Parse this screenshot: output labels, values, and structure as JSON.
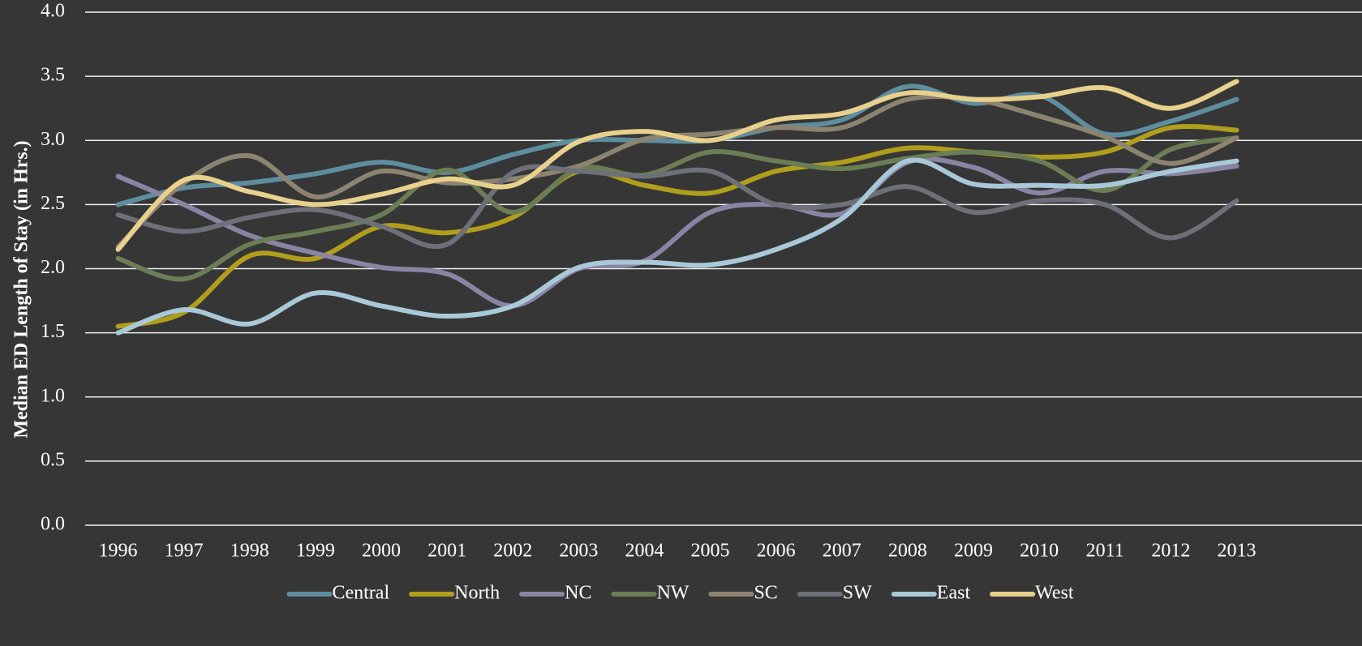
{
  "chart_data": {
    "type": "line",
    "y_label": "Median ED Length of Stay (in Hrs.)",
    "categories": [
      "1996",
      "1997",
      "1998",
      "1999",
      "2000",
      "2001",
      "2002",
      "2003",
      "2004",
      "2005",
      "2006",
      "2007",
      "2008",
      "2009",
      "2010",
      "2011",
      "2012",
      "2013"
    ],
    "ylim": [
      0,
      4
    ],
    "yticks": [
      {
        "value": 0,
        "label": "0.0"
      },
      {
        "value": 0.5,
        "label": "0.5"
      },
      {
        "value": 1,
        "label": "1.0"
      },
      {
        "value": 1.5,
        "label": "1.5"
      },
      {
        "value": 2,
        "label": "2.0"
      },
      {
        "value": 2.5,
        "label": "2.5"
      },
      {
        "value": 3,
        "label": "3.0"
      },
      {
        "value": 3.5,
        "label": "3.5"
      },
      {
        "value": 4,
        "label": "4.0"
      }
    ],
    "grid": true,
    "legend": "bottom",
    "smooth": true,
    "series": [
      {
        "name": "Central",
        "color": "#5e8d9e",
        "values": [
          2.5,
          2.63,
          2.67,
          2.74,
          2.83,
          2.75,
          2.89,
          3.0,
          3.0,
          3.0,
          3.1,
          3.16,
          3.42,
          3.29,
          3.35,
          3.05,
          3.15,
          3.32
        ]
      },
      {
        "name": "North",
        "color": "#b09e1c",
        "values": [
          1.55,
          1.66,
          2.1,
          2.08,
          2.33,
          2.28,
          2.4,
          2.76,
          2.65,
          2.59,
          2.76,
          2.83,
          2.94,
          2.91,
          2.87,
          2.91,
          3.1,
          3.08
        ]
      },
      {
        "name": "NC",
        "color": "#8a84a4",
        "values": [
          2.72,
          2.5,
          2.26,
          2.12,
          2.01,
          1.96,
          1.71,
          2.0,
          2.06,
          2.44,
          2.5,
          2.43,
          2.83,
          2.79,
          2.59,
          2.76,
          2.74,
          2.8
        ]
      },
      {
        "name": "NW",
        "color": "#6b7d55",
        "values": [
          2.08,
          1.92,
          2.19,
          2.29,
          2.42,
          2.77,
          2.44,
          2.78,
          2.73,
          2.91,
          2.84,
          2.78,
          2.86,
          2.91,
          2.84,
          2.61,
          2.93,
          3.02
        ]
      },
      {
        "name": "SC",
        "color": "#8c8370",
        "values": [
          2.17,
          2.67,
          2.88,
          2.56,
          2.76,
          2.67,
          2.7,
          2.8,
          3.01,
          3.05,
          3.1,
          3.1,
          3.32,
          3.32,
          3.19,
          3.03,
          2.82,
          3.02
        ]
      },
      {
        "name": "SW",
        "color": "#6d7079",
        "values": [
          2.42,
          2.29,
          2.4,
          2.46,
          2.33,
          2.19,
          2.75,
          2.76,
          2.72,
          2.76,
          2.5,
          2.5,
          2.64,
          2.44,
          2.53,
          2.5,
          2.24,
          2.53
        ]
      },
      {
        "name": "East",
        "color": "#a9c9d8",
        "values": [
          1.5,
          1.68,
          1.57,
          1.81,
          1.71,
          1.63,
          1.71,
          2.01,
          2.05,
          2.03,
          2.15,
          2.39,
          2.84,
          2.66,
          2.65,
          2.65,
          2.76,
          2.84
        ]
      },
      {
        "name": "West",
        "color": "#e8d18c",
        "values": [
          2.15,
          2.69,
          2.6,
          2.5,
          2.58,
          2.7,
          2.65,
          2.99,
          3.07,
          3.0,
          3.16,
          3.21,
          3.37,
          3.32,
          3.34,
          3.41,
          3.25,
          3.46
        ]
      }
    ]
  }
}
